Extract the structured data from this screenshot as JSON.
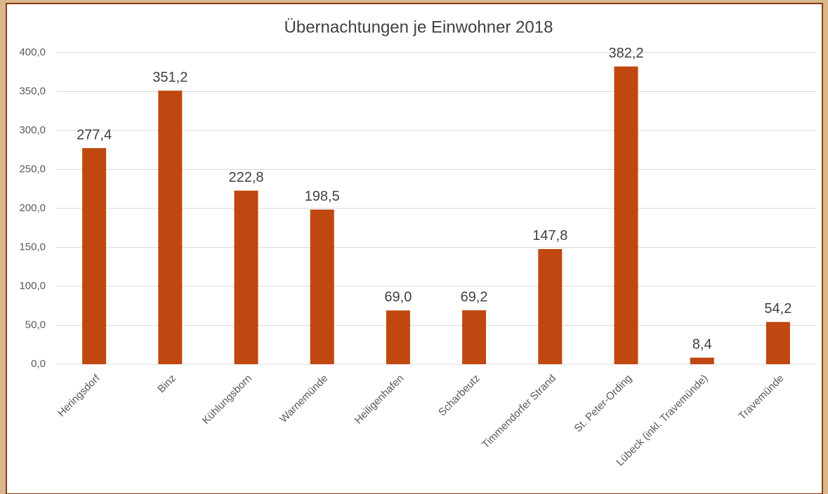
{
  "chart_data": {
    "type": "bar",
    "title": "Übernachtungen je Einwohner 2018",
    "categories": [
      "Heringsdorf",
      "Binz",
      "Kühlungsborn",
      "Warnemünde",
      "Heiligenhafen",
      "Scharbeutz",
      "Timmendorfer Strand",
      "St. Peter-Ording",
      "Lübeck (inkl. Travemünde)",
      "Travemünde"
    ],
    "values": [
      277.4,
      351.2,
      222.8,
      198.5,
      69.0,
      69.2,
      147.8,
      382.2,
      8.4,
      54.2
    ],
    "value_labels": [
      "277,4",
      "351,2",
      "222,8",
      "198,5",
      "69,0",
      "69,2",
      "147,8",
      "382,2",
      "8,4",
      "54,2"
    ],
    "color": "#c0470f",
    "ylim": [
      0,
      400
    ],
    "yticks": [
      {
        "value": 0,
        "label": "0,0"
      },
      {
        "value": 50,
        "label": "50,0"
      },
      {
        "value": 100,
        "label": "100,0"
      },
      {
        "value": 150,
        "label": "150,0"
      },
      {
        "value": 200,
        "label": "200,0"
      },
      {
        "value": 250,
        "label": "250,0"
      },
      {
        "value": 300,
        "label": "300,0"
      },
      {
        "value": 350,
        "label": "350,0"
      },
      {
        "value": 400,
        "label": "400,0"
      }
    ],
    "grid": true
  }
}
